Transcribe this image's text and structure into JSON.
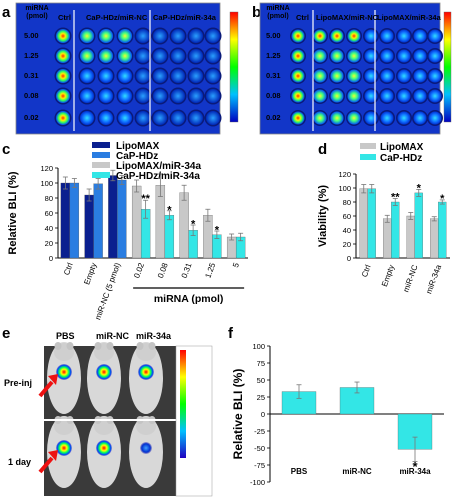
{
  "panels": {
    "a": {
      "letter": "a",
      "row_header": "miRNA (pmol)",
      "row_labels": [
        "5.00",
        "1.25",
        "0.31",
        "0.08",
        "0.02"
      ],
      "col_labels": [
        "Ctrl",
        "CaP-HDz/miR-NC",
        "CaP-HDz/miR-34a"
      ]
    },
    "b": {
      "letter": "b",
      "row_header": "miRNA (pmol)",
      "row_labels": [
        "5.00",
        "1.25",
        "0.31",
        "0.08",
        "0.02"
      ],
      "col_labels": [
        "Ctrl",
        "LipoMAX/miR-NC",
        "LipoMAX/miR-34a"
      ]
    },
    "c": {
      "letter": "c"
    },
    "d": {
      "letter": "d"
    },
    "e": {
      "letter": "e",
      "col_labels": [
        "PBS",
        "miR-NC",
        "miR-34a"
      ],
      "row_labels": [
        "Pre-inj",
        "1 day"
      ]
    },
    "f": {
      "letter": "f"
    }
  },
  "chart_data": [
    {
      "id": "c",
      "type": "bar",
      "ylabel": "Relative BLI (%)",
      "xlabel": "miRNA (pmol)",
      "yticks": [
        "0",
        "20",
        "40",
        "60",
        "80",
        "100",
        "120"
      ],
      "ylim": [
        0,
        120
      ],
      "categories": [
        "Ctrl",
        "Empty",
        "miR-NC (5 pmol)",
        "0.02",
        "0.08",
        "0.31",
        "1.25",
        "5"
      ],
      "series": [
        {
          "name": "LipoMAX",
          "color": "#0a1f8f",
          "values": [
            100,
            84,
            110,
            null,
            null,
            null,
            null,
            null
          ],
          "errors": [
            8,
            8,
            7,
            null,
            null,
            null,
            null,
            null
          ]
        },
        {
          "name": "CaP-HDz",
          "color": "#2a7de1",
          "values": [
            100,
            99,
            104,
            null,
            null,
            null,
            null,
            null
          ],
          "errors": [
            6,
            7,
            6,
            null,
            null,
            null,
            null,
            null
          ]
        },
        {
          "name": "LipoMAX/miR-34a",
          "color": "#c8c8c8",
          "values": [
            null,
            null,
            null,
            96,
            97,
            87,
            57,
            28
          ],
          "errors": [
            null,
            null,
            null,
            8,
            15,
            10,
            8,
            4
          ]
        },
        {
          "name": "CaP-HDz/miR-34a",
          "color": "#33e6e6",
          "values": [
            null,
            null,
            null,
            65,
            57,
            37,
            31,
            28
          ],
          "errors": [
            null,
            null,
            null,
            12,
            6,
            7,
            5,
            5
          ]
        }
      ],
      "annotations": [
        {
          "category": "0.02",
          "text": "**",
          "y": 80
        },
        {
          "category": "0.08",
          "text": "*",
          "y": 65
        },
        {
          "category": "0.31",
          "text": "*",
          "y": 46
        },
        {
          "category": "1.25",
          "text": "*",
          "y": 38
        }
      ]
    },
    {
      "id": "d",
      "type": "bar",
      "ylabel": "Viability (%)",
      "yticks": [
        "0",
        "20",
        "40",
        "60",
        "80",
        "100",
        "120"
      ],
      "ylim": [
        0,
        120
      ],
      "categories": [
        "Ctrl",
        "Empty",
        "miR-NC",
        "miR-34a"
      ],
      "series": [
        {
          "name": "LipoMAX",
          "color": "#c8c8c8",
          "values": [
            99,
            56,
            60,
            56
          ],
          "errors": [
            6,
            5,
            5,
            3
          ]
        },
        {
          "name": "CaP-HDz",
          "color": "#33e6e6",
          "values": [
            99,
            80,
            93,
            80
          ],
          "errors": [
            6,
            5,
            5,
            3
          ]
        }
      ],
      "annotations": [
        {
          "category": "Empty",
          "text": "**",
          "y": 88
        },
        {
          "category": "miR-NC",
          "text": "*",
          "y": 101
        },
        {
          "category": "miR-34a",
          "text": "*",
          "y": 86
        }
      ]
    },
    {
      "id": "f",
      "type": "bar",
      "ylabel": "Relative BLI (%)",
      "yticks": [
        "-100",
        "-75",
        "-50",
        "-25",
        "0",
        "25",
        "50",
        "75",
        "100"
      ],
      "ylim": [
        -100,
        100
      ],
      "categories": [
        "PBS",
        "miR-NC",
        "miR-34a"
      ],
      "series": [
        {
          "name": "",
          "color": "#33e6e6",
          "values": [
            33,
            39,
            -52
          ],
          "errors": [
            10,
            8,
            18
          ]
        }
      ],
      "annotations": [
        {
          "category": "miR-34a",
          "text": "*",
          "y": -78
        }
      ]
    }
  ]
}
